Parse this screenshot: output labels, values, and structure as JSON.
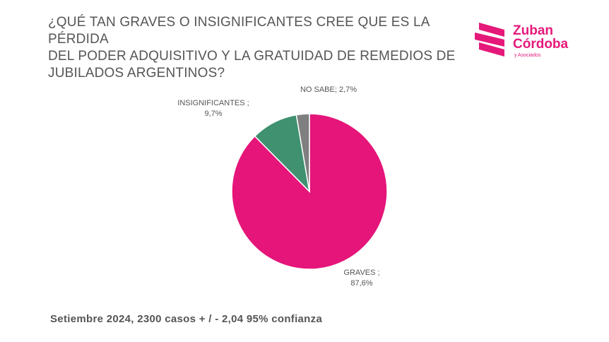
{
  "title_lines": [
    "¿QUÉ TAN GRAVES O INSIGNIFICANTES CREE QUE ES LA PÉRDIDA",
    "DEL PODER ADQUISITIVO Y LA GRATUIDAD DE REMEDIOS DE",
    "JUBILADOS ARGENTINOS?"
  ],
  "logo": {
    "line1": "Zuban",
    "line2": "Córdoba",
    "sub": "y Asociados",
    "color": "#e5197a"
  },
  "footer": "Setiembre 2024, 2300 casos + / - 2,04 95% confianza",
  "chart_data": {
    "type": "pie",
    "title": "¿QUÉ TAN GRAVES O INSIGNIFICANTES CREE QUE ES LA PÉRDIDA DEL PODER ADQUISITIVO Y LA GRATUIDAD DE REMEDIOS DE JUBILADOS ARGENTINOS?",
    "slices": [
      {
        "label": "GRAVES",
        "value": 87.6,
        "display": "87,6%",
        "color": "#e5157a"
      },
      {
        "label": "INSIGNIFICANTES",
        "value": 9.7,
        "display": "9,7%",
        "color": "#3f9170"
      },
      {
        "label": "NO SABE",
        "value": 2.7,
        "display": "2,7%",
        "color": "#7f7f7f"
      }
    ],
    "legend": "none"
  }
}
